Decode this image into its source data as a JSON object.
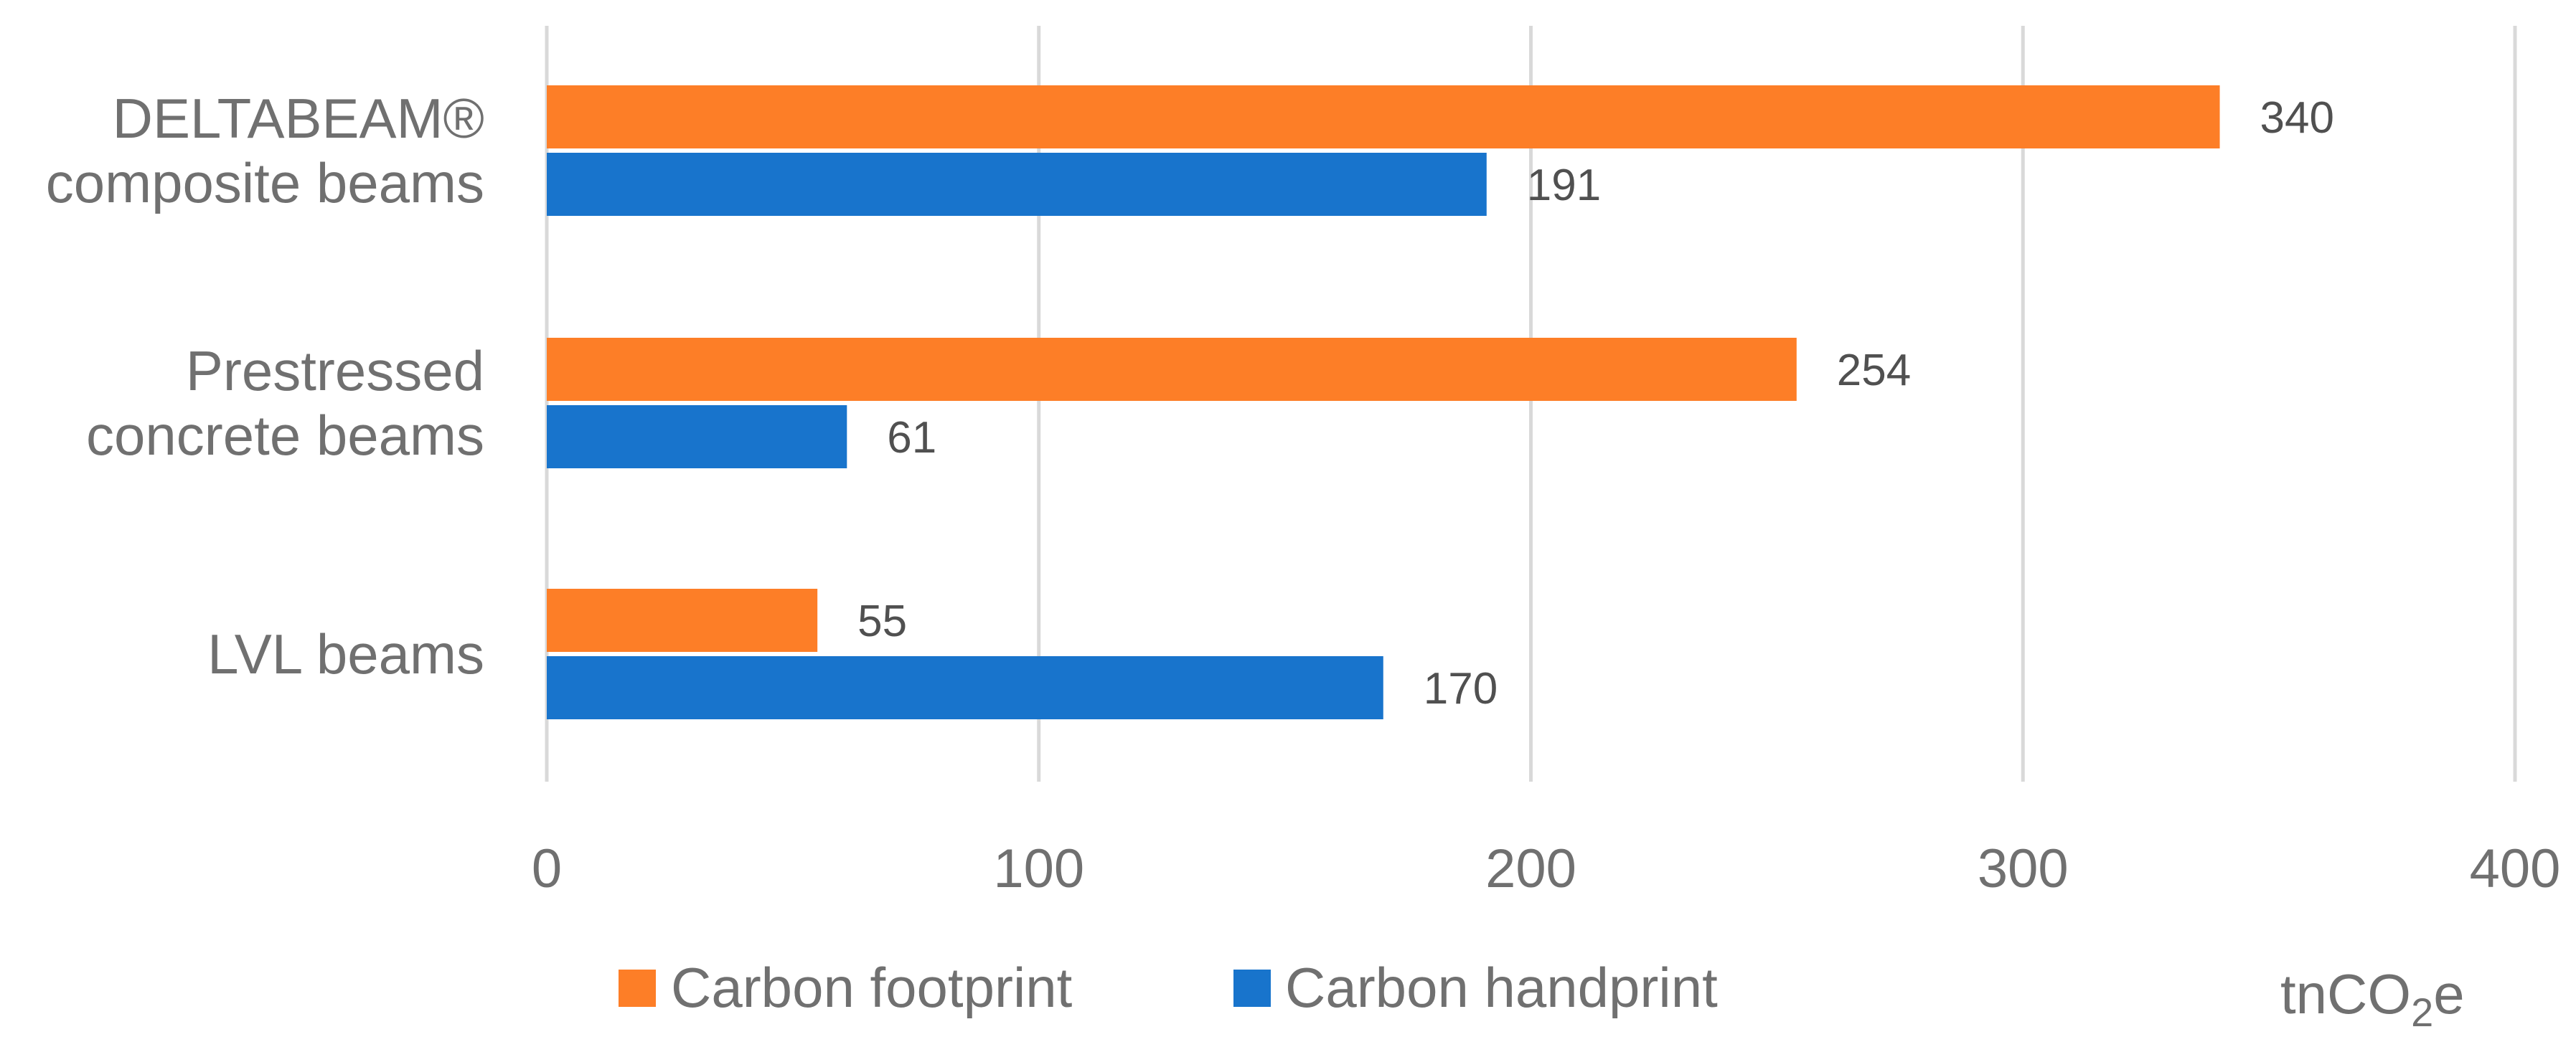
{
  "chart_data": {
    "type": "bar",
    "orientation": "horizontal",
    "categories": [
      [
        "DELTABEAM®",
        "composite beams"
      ],
      [
        "Prestressed",
        "concrete beams"
      ],
      [
        "LVL beams"
      ]
    ],
    "series": [
      {
        "name": "Carbon footprint",
        "color": "#FD7E27",
        "values": [
          340,
          254,
          55
        ]
      },
      {
        "name": "Carbon handprint",
        "color": "#1874CC",
        "values": [
          191,
          61,
          170
        ]
      }
    ],
    "xlim": [
      0,
      400
    ],
    "xticks": [
      0,
      100,
      200,
      300,
      400
    ],
    "unit": {
      "base": "tnCO",
      "sub": "2",
      "suffix": "e"
    },
    "grid": "vertical",
    "legend_position": "bottom"
  }
}
